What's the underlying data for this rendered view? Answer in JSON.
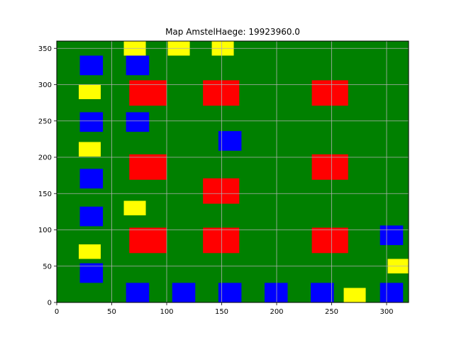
{
  "chart_data": {
    "type": "heatmap",
    "title": "Map AmstelHaege: 19923960.0",
    "xlabel": "",
    "ylabel": "",
    "xlim": [
      0,
      320
    ],
    "ylim": [
      0,
      360
    ],
    "xticks": [
      "0",
      "50",
      "100",
      "150",
      "200",
      "250",
      "300"
    ],
    "yticks": [
      "0",
      "50",
      "100",
      "150",
      "200",
      "250",
      "300",
      "350"
    ],
    "grid": true,
    "background_color": "#008000",
    "grid_color": "#b0b0b0",
    "color_key": {
      "blue": "#0000ff",
      "red": "#ff0000",
      "yellow": "#ffff00"
    },
    "series": [
      {
        "color": "blue",
        "rects": [
          {
            "x0": 21,
            "x1": 42,
            "y0": 313,
            "y1": 340
          },
          {
            "x0": 63,
            "x1": 84,
            "y0": 313,
            "y1": 340
          },
          {
            "x0": 21,
            "x1": 42,
            "y0": 235,
            "y1": 262
          },
          {
            "x0": 63,
            "x1": 84,
            "y0": 235,
            "y1": 262
          },
          {
            "x0": 147,
            "x1": 168,
            "y0": 209,
            "y1": 236
          },
          {
            "x0": 21,
            "x1": 42,
            "y0": 157,
            "y1": 184
          },
          {
            "x0": 21,
            "x1": 42,
            "y0": 105,
            "y1": 132
          },
          {
            "x0": 294,
            "x1": 315,
            "y0": 79,
            "y1": 106
          },
          {
            "x0": 21,
            "x1": 42,
            "y0": 27,
            "y1": 54
          },
          {
            "x0": 63,
            "x1": 84,
            "y0": 0,
            "y1": 27
          },
          {
            "x0": 105,
            "x1": 126,
            "y0": 0,
            "y1": 27
          },
          {
            "x0": 147,
            "x1": 168,
            "y0": 0,
            "y1": 27
          },
          {
            "x0": 189,
            "x1": 210,
            "y0": 0,
            "y1": 27
          },
          {
            "x0": 231,
            "x1": 252,
            "y0": 0,
            "y1": 27
          },
          {
            "x0": 294,
            "x1": 315,
            "y0": 0,
            "y1": 27
          }
        ]
      },
      {
        "color": "red",
        "rects": [
          {
            "x0": 66,
            "x1": 100,
            "y0": 271,
            "y1": 306
          },
          {
            "x0": 133,
            "x1": 166,
            "y0": 271,
            "y1": 306
          },
          {
            "x0": 232,
            "x1": 265,
            "y0": 271,
            "y1": 306
          },
          {
            "x0": 66,
            "x1": 100,
            "y0": 169,
            "y1": 204
          },
          {
            "x0": 232,
            "x1": 265,
            "y0": 169,
            "y1": 204
          },
          {
            "x0": 133,
            "x1": 166,
            "y0": 136,
            "y1": 171
          },
          {
            "x0": 66,
            "x1": 100,
            "y0": 68,
            "y1": 103
          },
          {
            "x0": 133,
            "x1": 166,
            "y0": 68,
            "y1": 103
          },
          {
            "x0": 232,
            "x1": 265,
            "y0": 68,
            "y1": 103
          }
        ]
      },
      {
        "color": "yellow",
        "rects": [
          {
            "x0": 61,
            "x1": 81,
            "y0": 340,
            "y1": 360
          },
          {
            "x0": 101,
            "x1": 121,
            "y0": 340,
            "y1": 360
          },
          {
            "x0": 141,
            "x1": 161,
            "y0": 340,
            "y1": 360
          },
          {
            "x0": 20,
            "x1": 40,
            "y0": 280,
            "y1": 300
          },
          {
            "x0": 20,
            "x1": 40,
            "y0": 201,
            "y1": 221
          },
          {
            "x0": 61,
            "x1": 81,
            "y0": 120,
            "y1": 140
          },
          {
            "x0": 20,
            "x1": 40,
            "y0": 60,
            "y1": 80
          },
          {
            "x0": 301,
            "x1": 321,
            "y0": 40,
            "y1": 60
          },
          {
            "x0": 261,
            "x1": 281,
            "y0": 0,
            "y1": 20
          }
        ]
      }
    ]
  }
}
